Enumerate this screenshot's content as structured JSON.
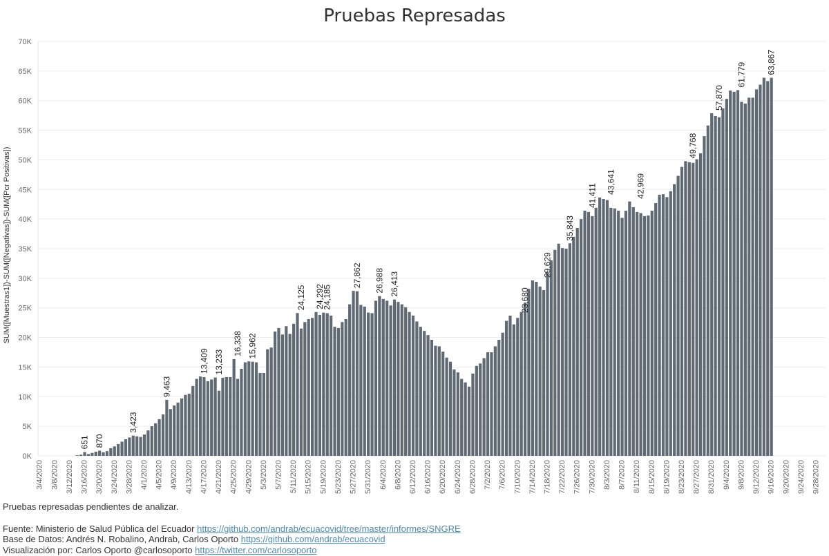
{
  "title": "Pruebas Represadas",
  "chart_data": {
    "type": "bar",
    "title": "Pruebas Represadas",
    "xlabel": "",
    "ylabel": "SUM([Muestras1])-SUM([Negativas])-SUM([Pcr Positivas])",
    "ylim": [
      0,
      70000
    ],
    "yticks": [
      0,
      5000,
      10000,
      15000,
      20000,
      25000,
      30000,
      35000,
      40000,
      45000,
      50000,
      55000,
      60000,
      65000,
      70000
    ],
    "ytick_labels": [
      "0K",
      "5K",
      "10K",
      "15K",
      "20K",
      "25K",
      "30K",
      "35K",
      "40K",
      "45K",
      "50K",
      "55K",
      "60K",
      "65K",
      "70K"
    ],
    "x_start": "2020-03-04",
    "x_end": "2020-09-30",
    "xtick_labels": [
      "3/4/2020",
      "3/8/2020",
      "3/12/2020",
      "3/16/2020",
      "3/20/2020",
      "3/24/2020",
      "3/28/2020",
      "4/1/2020",
      "4/5/2020",
      "4/9/2020",
      "4/13/2020",
      "4/17/2020",
      "4/21/2020",
      "4/25/2020",
      "4/29/2020",
      "5/3/2020",
      "5/7/2020",
      "5/11/2020",
      "5/15/2020",
      "5/19/2020",
      "5/23/2020",
      "5/27/2020",
      "5/31/2020",
      "6/4/2020",
      "6/8/2020",
      "6/12/2020",
      "6/16/2020",
      "6/20/2020",
      "6/24/2020",
      "6/28/2020",
      "7/2/2020",
      "7/6/2020",
      "7/10/2020",
      "7/14/2020",
      "7/18/2020",
      "7/22/2020",
      "7/26/2020",
      "7/30/2020",
      "8/3/2020",
      "8/7/2020",
      "8/11/2020",
      "8/15/2020",
      "8/19/2020",
      "8/23/2020",
      "8/27/2020",
      "8/31/2020",
      "9/4/2020",
      "9/8/2020",
      "9/12/2020",
      "9/16/2020",
      "9/20/2020",
      "9/24/2020",
      "9/28/2020"
    ],
    "bar_start": "2020-03-14",
    "values": [
      100,
      200,
      651,
      300,
      500,
      700,
      870,
      600,
      800,
      1300,
      1600,
      2000,
      2400,
      2800,
      3100,
      3423,
      3300,
      3200,
      3600,
      4300,
      5000,
      5500,
      6200,
      7000,
      9463,
      7900,
      8500,
      9000,
      9700,
      10300,
      10500,
      11800,
      13000,
      13409,
      13300,
      12600,
      12900,
      13233,
      11000,
      13200,
      13300,
      13300,
      16338,
      13000,
      14700,
      15800,
      15962,
      15900,
      15800,
      14000,
      14000,
      18000,
      18300,
      21000,
      21600,
      20500,
      21900,
      20600,
      22300,
      24125,
      21500,
      22600,
      23100,
      23300,
      24292,
      23800,
      24185,
      24100,
      23700,
      21800,
      21600,
      22600,
      23100,
      25600,
      27862,
      27800,
      25500,
      25200,
      24200,
      24100,
      26200,
      26988,
      26500,
      26200,
      25400,
      26413,
      26000,
      25600,
      25100,
      24300,
      23700,
      22700,
      21800,
      21100,
      20400,
      19600,
      18600,
      18500,
      17600,
      16600,
      15900,
      14600,
      14100,
      13000,
      12400,
      11700,
      13900,
      15200,
      15600,
      16500,
      17500,
      17500,
      18500,
      19600,
      20800,
      22800,
      23680,
      22200,
      23300,
      24300,
      25900,
      28200,
      29629,
      29400,
      28600,
      28000,
      31000,
      33000,
      34800,
      35843,
      35100,
      35000,
      35900,
      37000,
      38500,
      40000,
      41411,
      41200,
      40500,
      41900,
      43641,
      43400,
      43200,
      41900,
      41800,
      41400,
      40200,
      41400,
      42969,
      42000,
      41200,
      41000,
      40500,
      40600,
      41400,
      42700,
      44100,
      44200,
      43700,
      44700,
      45900,
      47300,
      48800,
      49768,
      49600,
      49500,
      50100,
      51100,
      54000,
      55800,
      57870,
      57400,
      57200,
      58700,
      60300,
      61700,
      61500,
      61779,
      59800,
      59500,
      60500,
      60500,
      61900,
      62700,
      63867,
      63300,
      63867
    ],
    "data_labels": [
      {
        "date": "2020-03-16",
        "value": 651,
        "label": "651"
      },
      {
        "date": "2020-03-20",
        "value": 870,
        "label": "870"
      },
      {
        "date": "2020-03-29",
        "value": 3423,
        "label": "3,423"
      },
      {
        "date": "2020-04-07",
        "value": 9463,
        "label": "9,463"
      },
      {
        "date": "2020-04-17",
        "value": 13409,
        "label": "13,409"
      },
      {
        "date": "2020-04-21",
        "value": 13233,
        "label": "13,233"
      },
      {
        "date": "2020-04-26",
        "value": 16338,
        "label": "16,338"
      },
      {
        "date": "2020-04-30",
        "value": 15962,
        "label": "15,962"
      },
      {
        "date": "2020-05-13",
        "value": 24125,
        "label": "24,125"
      },
      {
        "date": "2020-05-18",
        "value": 24292,
        "label": "24,292"
      },
      {
        "date": "2020-05-20",
        "value": 24185,
        "label": "24,185"
      },
      {
        "date": "2020-05-28",
        "value": 27862,
        "label": "27,862"
      },
      {
        "date": "2020-06-03",
        "value": 26988,
        "label": "26,988"
      },
      {
        "date": "2020-06-07",
        "value": 26413,
        "label": "26,413"
      },
      {
        "date": "2020-07-12",
        "value": 23680,
        "label": "23,680"
      },
      {
        "date": "2020-07-18",
        "value": 29629,
        "label": "29,629"
      },
      {
        "date": "2020-07-24",
        "value": 35843,
        "label": "35,843"
      },
      {
        "date": "2020-07-30",
        "value": 41411,
        "label": "41,411"
      },
      {
        "date": "2020-08-04",
        "value": 43641,
        "label": "43,641"
      },
      {
        "date": "2020-08-12",
        "value": 42969,
        "label": "42,969"
      },
      {
        "date": "2020-08-26",
        "value": 49768,
        "label": "49,768"
      },
      {
        "date": "2020-09-02",
        "value": 57870,
        "label": "57,870"
      },
      {
        "date": "2020-09-08",
        "value": 61779,
        "label": "61,779"
      },
      {
        "date": "2020-09-16",
        "value": 63867,
        "label": "63,867"
      }
    ],
    "bar_color": "#5f6a75",
    "grid": true,
    "legend": "none"
  },
  "footer": {
    "description": "Pruebas represadas pendientes de analizar.",
    "source_text": "Fuente: Ministerio de Salud Pública del Ecuador",
    "source_link": "https://github.com/andrab/ecuacovid/tree/master/informes/SNGRE",
    "data_text": "Base de Datos: Andrés N. Robalino, Andrab, Carlos Oporto",
    "data_link": "https://github.com/andrab/ecuacovid",
    "viz_text": "Visualización por: Carlos Oporto @carlosoporto",
    "viz_link": "https://twitter.com/carlosoporto"
  },
  "colors": {
    "bar": "#5f6a75",
    "grid": "#ececec",
    "link": "#4a8bb5"
  }
}
